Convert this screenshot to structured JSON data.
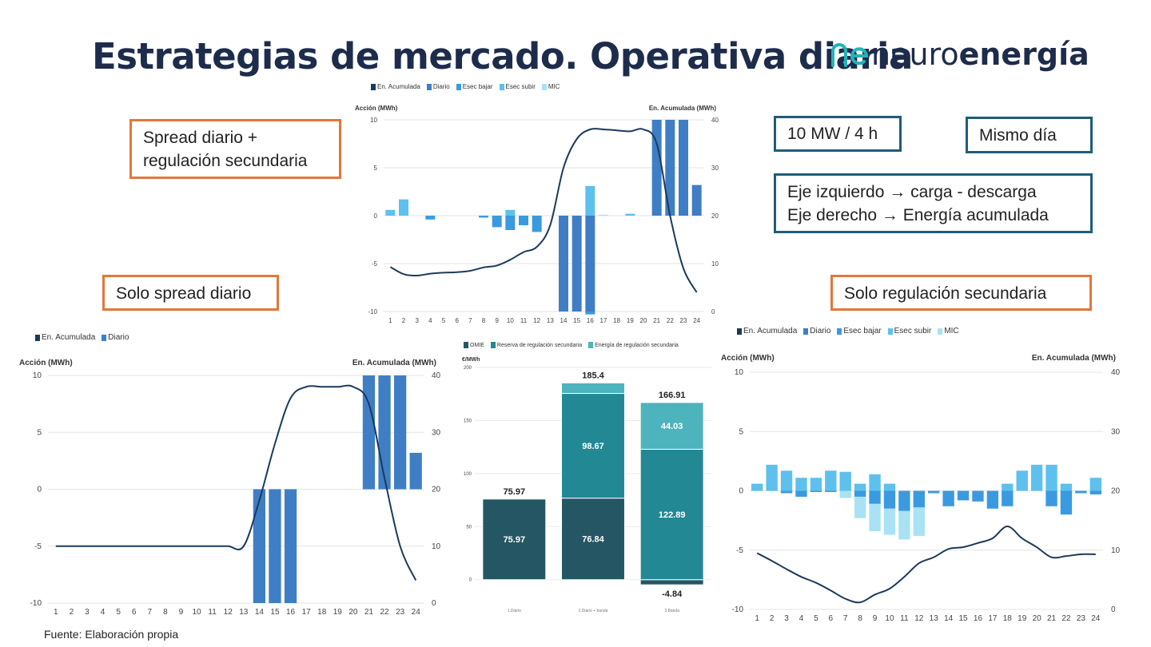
{
  "header": {
    "title": "Estrategias de mercado. Operativa diaria",
    "logo_light": "neuro",
    "logo_bold": "energía"
  },
  "labels": {
    "spread_reg": [
      "Spread diario +",
      "regulación secundaria"
    ],
    "solo_spread": "Solo spread diario",
    "solo_reg": "Solo regulación secundaria",
    "potencia": "10 MW / 4 h",
    "mismo_dia": "Mismo día",
    "ejes": [
      "Eje izquierdo → carga - descarga",
      "Eje derecho → Energía acumulada"
    ]
  },
  "source": "Fuente: Elaboración propia",
  "colors": {
    "line": "#1b3a5c",
    "diario": "#3f7ec4",
    "bajar": "#3a9ae0",
    "subir": "#5ec0ec",
    "mic": "#a9e2f5",
    "omie": "#245763",
    "reserva": "#228894",
    "energia": "#4db3bd",
    "orange": "#e2773a",
    "teal": "#1f5c7a"
  },
  "chart_data": [
    {
      "id": "combined",
      "type": "bar+line",
      "title": "Spread diario + regulación secundaria",
      "legend": [
        "En. Acumulada",
        "Diario",
        "Esec bajar",
        "Esec subir",
        "MIC"
      ],
      "ylabel_left": "Acción (MWh)",
      "ylabel_right": "En. Acumulada (MWh)",
      "ylim_left": [
        -10,
        10
      ],
      "ylim_right": [
        0,
        40
      ],
      "yticks_left": [
        "10",
        "5",
        "0",
        "-5",
        "-10"
      ],
      "yticks_right": [
        "40",
        "30",
        "20",
        "10",
        "0"
      ],
      "categories": [
        "1",
        "2",
        "3",
        "4",
        "5",
        "6",
        "7",
        "8",
        "9",
        "10",
        "11",
        "12",
        "13",
        "14",
        "15",
        "16",
        "17",
        "18",
        "19",
        "20",
        "21",
        "22",
        "23",
        "24"
      ],
      "series": [
        {
          "name": "Diario",
          "values": [
            0,
            0,
            0,
            0,
            0,
            0,
            0,
            0,
            0,
            0,
            0,
            0,
            0,
            -10,
            -10,
            -10,
            0,
            0,
            0,
            0,
            10,
            10,
            10,
            3.2
          ]
        },
        {
          "name": "Esec bajar",
          "values": [
            0,
            0,
            0,
            -0.4,
            0,
            0,
            0,
            -0.2,
            -1.2,
            -1.5,
            -1,
            -1.7,
            0,
            0,
            0,
            -0.3,
            0,
            0,
            0,
            0,
            0,
            0,
            0,
            0
          ]
        },
        {
          "name": "Esec subir",
          "values": [
            0.6,
            1.7,
            0,
            0,
            0,
            0,
            0,
            0,
            0,
            0.6,
            0,
            0,
            0,
            0,
            0,
            3.1,
            0,
            0,
            0.2,
            0,
            0,
            0,
            0,
            0
          ]
        },
        {
          "name": "MIC",
          "values": [
            0,
            0,
            0,
            0,
            0,
            0,
            0,
            0,
            0,
            0,
            0,
            0,
            0,
            0,
            0,
            0,
            0.1,
            0,
            0,
            0,
            0,
            0,
            0,
            0
          ]
        },
        {
          "name": "En. Acumulada",
          "values": [
            9.3,
            7.8,
            7.5,
            7.9,
            8.1,
            8.2,
            8.5,
            9.2,
            9.6,
            10.8,
            12.4,
            13.5,
            18,
            30,
            36,
            38,
            38,
            37.8,
            37.6,
            38,
            35,
            20,
            9,
            4
          ]
        }
      ]
    },
    {
      "id": "solo_spread",
      "type": "bar+line",
      "title": "Solo spread diario",
      "legend": [
        "En. Acumulada",
        "Diario"
      ],
      "ylabel_left": "Acción (MWh)",
      "ylabel_right": "En. Acumulada (MWh)",
      "ylim_left": [
        -10,
        10
      ],
      "ylim_right": [
        0,
        40
      ],
      "yticks_left": [
        "10",
        "5",
        "0",
        "-5",
        "-10"
      ],
      "yticks_right": [
        "40",
        "30",
        "20",
        "10",
        "0"
      ],
      "categories": [
        "1",
        "2",
        "3",
        "4",
        "5",
        "6",
        "7",
        "8",
        "9",
        "10",
        "11",
        "12",
        "13",
        "14",
        "15",
        "16",
        "17",
        "18",
        "19",
        "20",
        "21",
        "22",
        "23",
        "24"
      ],
      "series": [
        {
          "name": "Diario",
          "values": [
            0,
            0,
            0,
            0,
            0,
            0,
            0,
            0,
            0,
            0,
            0,
            0,
            0,
            -10,
            -10,
            -10,
            0,
            0,
            0,
            0,
            10,
            10,
            10,
            3.2
          ]
        },
        {
          "name": "En. Acumulada",
          "values": [
            10,
            10,
            10,
            10,
            10,
            10,
            10,
            10,
            10,
            10,
            10,
            10,
            10,
            18,
            28,
            36,
            38,
            38,
            38,
            38,
            35,
            22,
            10,
            4
          ]
        }
      ]
    },
    {
      "id": "price",
      "type": "stacked-bar",
      "legend": [
        "OMIE",
        "Reserva de regulación secundaria",
        "Energía de regulación secundaria"
      ],
      "ylabel": "€/MWh",
      "ylim": [
        -10,
        200
      ],
      "yticks": [
        "200",
        "150",
        "100",
        "50",
        "0"
      ],
      "categories": [
        "1.Diario",
        "2.Diario + banda",
        "3.Banda"
      ],
      "series": [
        {
          "name": "OMIE",
          "values": [
            75.97,
            76.84,
            -4.84
          ]
        },
        {
          "name": "Reserva de regulación secundaria",
          "values": [
            0,
            98.67,
            122.89
          ]
        },
        {
          "name": "Energía de regulación secundaria",
          "values": [
            0,
            9.89,
            44.03
          ]
        }
      ],
      "segment_labels": [
        [
          "75.97",
          "",
          ""
        ],
        [
          "76.84",
          "98.67",
          ""
        ],
        [
          "-4.84",
          "122.89",
          "44.03"
        ]
      ],
      "totals": [
        "75.97",
        "185.4",
        "166.91"
      ]
    },
    {
      "id": "solo_reg",
      "type": "bar+line",
      "title": "Solo regulación secundaria",
      "legend": [
        "En. Acumulada",
        "Diario",
        "Esec bajar",
        "Esec subir",
        "MIC"
      ],
      "ylabel_left": "Acción (MWh)",
      "ylabel_right": "En. Acumulada (MWh)",
      "ylim_left": [
        -10,
        10
      ],
      "ylim_right": [
        0,
        40
      ],
      "yticks_left": [
        "10",
        "5",
        "0",
        "-5",
        "-10"
      ],
      "yticks_right": [
        "40",
        "30",
        "20",
        "10",
        "0"
      ],
      "categories": [
        "1",
        "2",
        "3",
        "4",
        "5",
        "6",
        "7",
        "8",
        "9",
        "10",
        "11",
        "12",
        "13",
        "14",
        "15",
        "16",
        "17",
        "18",
        "19",
        "20",
        "21",
        "22",
        "23",
        "24"
      ],
      "series": [
        {
          "name": "Diario",
          "values": [
            0,
            0,
            0,
            0,
            0,
            0,
            0,
            0,
            0,
            0,
            0,
            0,
            0,
            0,
            0,
            0,
            0,
            0,
            0,
            0,
            0,
            0,
            0,
            0
          ]
        },
        {
          "name": "Esec bajar",
          "values": [
            0,
            0,
            -0.2,
            -0.5,
            -0.1,
            -0.1,
            0,
            -0.5,
            -1.1,
            -1.5,
            -1.7,
            -1.4,
            -0.2,
            -1.3,
            -0.8,
            -0.9,
            -1.5,
            -1.3,
            0,
            0,
            -1.3,
            -2,
            -0.2,
            -0.3
          ]
        },
        {
          "name": "Esec subir",
          "values": [
            0.6,
            2.2,
            1.7,
            1.1,
            1.1,
            1.7,
            1.6,
            0.6,
            1.4,
            0.6,
            0,
            0,
            0,
            0,
            0,
            0,
            0,
            0.6,
            1.7,
            2.2,
            2.2,
            0.6,
            0,
            1.1
          ]
        },
        {
          "name": "MIC",
          "values": [
            0,
            0,
            0,
            0,
            0,
            0,
            -0.6,
            -1.8,
            -2.3,
            -2.2,
            -2.4,
            -2.4,
            0,
            0,
            0,
            0,
            0,
            0,
            0,
            0,
            0,
            0,
            0,
            0
          ]
        },
        {
          "name": "En. Acumulada",
          "values": [
            9.5,
            8.2,
            6.8,
            5.5,
            4.5,
            3.2,
            1.8,
            1.2,
            2.5,
            3.5,
            5.5,
            7.8,
            8.8,
            10.2,
            10.5,
            11.2,
            12,
            14,
            12,
            10.5,
            8.8,
            9,
            9.3,
            9.3
          ]
        }
      ]
    }
  ]
}
